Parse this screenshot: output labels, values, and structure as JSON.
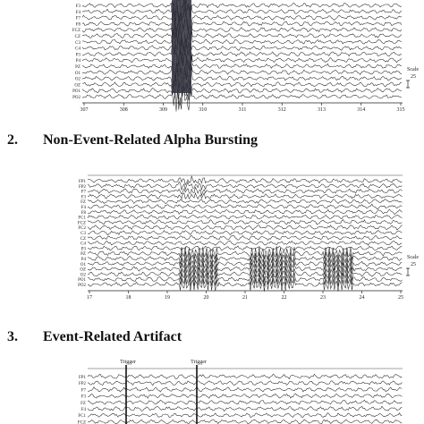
{
  "panels": [
    {
      "channels": [
        "F3",
        "F4",
        "F7",
        "F8",
        "FCZ",
        "CZ",
        "C3",
        "C4",
        "P3",
        "P4",
        "PZ",
        "O1",
        "O2",
        "OZ",
        "PO1",
        "PO2"
      ],
      "x_ticks": [
        "307",
        "308",
        "309",
        "310",
        "311",
        "312",
        "313",
        "314",
        "315"
      ],
      "scale": {
        "label": "Scale",
        "value": "25"
      },
      "artifact": "vertical-burst"
    },
    {
      "heading_number": "2.",
      "heading_text": "Non-Event-Related Alpha Bursting",
      "channels": [
        "FP1",
        "FP2",
        "F7",
        "F3",
        "FZ",
        "F4",
        "F8",
        "FC1",
        "FCZ",
        "FC2",
        "C3",
        "CZ",
        "C4",
        "P3",
        "PZ",
        "P4",
        "O1",
        "OZ",
        "O2",
        "PO1",
        "PO2"
      ],
      "x_ticks": [
        "17",
        "18",
        "19",
        "20",
        "21",
        "22",
        "23",
        "24",
        "25"
      ],
      "scale": {
        "label": "Scale",
        "value": "25"
      },
      "artifact": "alpha-burst"
    },
    {
      "heading_number": "3.",
      "heading_text": "Event-Related Artifact",
      "channels": [
        "FP1",
        "FP2",
        "F7",
        "F3",
        "FZ",
        "F4",
        "FC1",
        "FCZ",
        "FC2"
      ],
      "triggers": [
        "Trigger",
        "Trigger"
      ],
      "artifact": "trigger"
    }
  ]
}
